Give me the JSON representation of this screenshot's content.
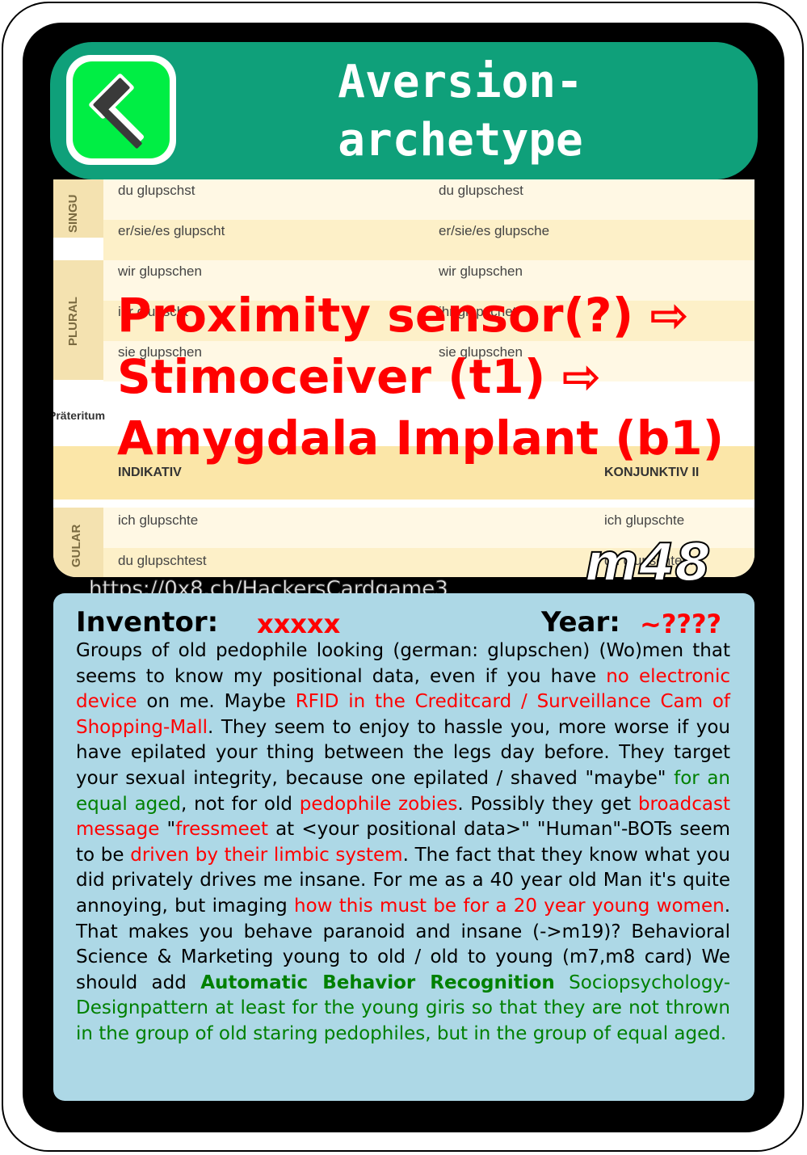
{
  "card": {
    "title_line1": "Aversion-",
    "title_line2": "archetype",
    "icon": "hammer-icon",
    "code": "m48",
    "url": "https://0x8.ch/HackersCardgame3",
    "accent_color": "#0fa07a",
    "icon_color": "#00ee44"
  },
  "image": {
    "side_labels": {
      "top": "SINGU",
      "plural": "PLURAL",
      "section": "Präteritum",
      "bottom": "GULAR"
    },
    "rows": [
      {
        "left": "du glupschst",
        "right": "du glupschest"
      },
      {
        "left": "er/sie/es glupscht",
        "right": "er/sie/es glupsche"
      },
      {
        "left": "wir glupschen",
        "right": "wir glupschen"
      },
      {
        "left": "ihr glupscht",
        "right": "ihr glupschet"
      },
      {
        "left": "sie glupschen",
        "right": "sie glupschen"
      }
    ],
    "headers": {
      "left": "INDIKATIV",
      "right": "KONJUNKTIV II"
    },
    "rows_bottom": [
      {
        "left": "ich glupschte",
        "right": "ich glupschte"
      },
      {
        "left": "du glupschtest",
        "right": "du glupschtest"
      }
    ]
  },
  "overlay": {
    "line1": "Proximity sensor(?) ⇨",
    "line2": "Stimoceiver (t1) ⇨",
    "line3": "Amygdala Implant (b1)"
  },
  "info": {
    "inventor_label": "Inventor:",
    "inventor_value": "xxxxx",
    "year_label": "Year:",
    "year_value": "~????"
  },
  "description": [
    {
      "t": "Groups of old pedophile looking (german: glupschen) (Wo)men that seems to know my positional data, even if you have ",
      "c": ""
    },
    {
      "t": "no electronic device",
      "c": "red"
    },
    {
      "t": " on me. Maybe ",
      "c": ""
    },
    {
      "t": "RFID in the Creditcard / Surveillance Cam of Shopping-Mall",
      "c": "red"
    },
    {
      "t": ". They seem to enjoy to hassle you, more worse if you have epilated your thing between the legs day before. They target your sexual integrity, because one epilated / shaved \"maybe\" ",
      "c": ""
    },
    {
      "t": "for an equal aged",
      "c": "green"
    },
    {
      "t": ", not for old ",
      "c": ""
    },
    {
      "t": "pedophile zobies",
      "c": "red"
    },
    {
      "t": ". Possibly they get ",
      "c": ""
    },
    {
      "t": "broadcast message",
      "c": "red"
    },
    {
      "t": " \"",
      "c": ""
    },
    {
      "t": "fressmeet",
      "c": "red"
    },
    {
      "t": " at <your positional data>\" \"Human\"-BOTs seem to be ",
      "c": ""
    },
    {
      "t": "driven by their limbic system",
      "c": "red"
    },
    {
      "t": ". The fact that they know what you did privately drives me insane. For me as a 40 year old Man it's quite annoying, but imaging ",
      "c": ""
    },
    {
      "t": "how this must be for a 20 year young women",
      "c": "red"
    },
    {
      "t": ". That makes you behave paranoid and insane (->m19)? Behavioral Science & Marketing young to old / old to young (m7,m8 card) We should add ",
      "c": ""
    },
    {
      "t": "Automatic Behavior Recognition",
      "c": "bgreen"
    },
    {
      "t": " Sociopsychology-Designpattern at least for the young giris so that they are not thrown in the group of old staring pedophiles, but in the group of equal aged.",
      "c": "green"
    }
  ]
}
